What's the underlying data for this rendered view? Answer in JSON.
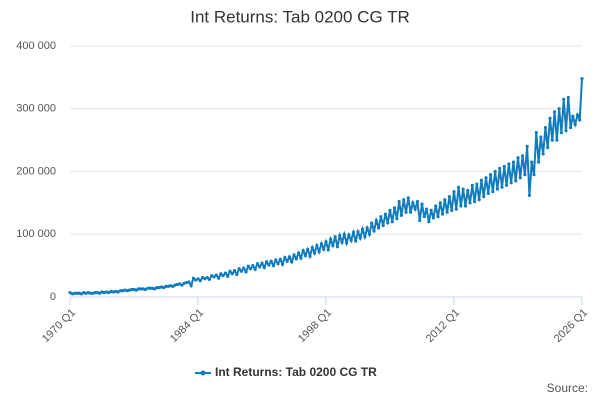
{
  "chart_data": {
    "type": "line",
    "title": "Int Returns: Tab 0200 CG TR",
    "source": "Source:",
    "categories": [
      "1970 Q1",
      null,
      null,
      null,
      null,
      null,
      null,
      null,
      null,
      null,
      null,
      null,
      null,
      null,
      null,
      null,
      null,
      null,
      null,
      null,
      null,
      null,
      null,
      null,
      null,
      null,
      null,
      null,
      null,
      null,
      null,
      null,
      null,
      null,
      null,
      null,
      null,
      null,
      null,
      null,
      null,
      null,
      null,
      null,
      null,
      null,
      null,
      null,
      null,
      null,
      null,
      null,
      null,
      null,
      null,
      null,
      "1984 Q1",
      null,
      null,
      null,
      null,
      null,
      null,
      null,
      null,
      null,
      null,
      null,
      null,
      null,
      null,
      null,
      null,
      null,
      null,
      null,
      null,
      null,
      null,
      null,
      null,
      null,
      null,
      null,
      null,
      null,
      null,
      null,
      null,
      null,
      null,
      null,
      null,
      null,
      null,
      null,
      null,
      null,
      null,
      null,
      null,
      null,
      null,
      null,
      null,
      null,
      null,
      null,
      null,
      null,
      null,
      null,
      "1998 Q1",
      null,
      null,
      null,
      null,
      null,
      null,
      null,
      null,
      null,
      null,
      null,
      null,
      null,
      null,
      null,
      null,
      null,
      null,
      null,
      null,
      null,
      null,
      null,
      null,
      null,
      null,
      null,
      null,
      null,
      null,
      null,
      null,
      null,
      null,
      null,
      null,
      null,
      null,
      null,
      null,
      null,
      null,
      null,
      null,
      null,
      null,
      null,
      null,
      null,
      null,
      null,
      null,
      null,
      null,
      null,
      "2012 Q1",
      null,
      null,
      null,
      null,
      null,
      null,
      null,
      null,
      null,
      null,
      null,
      null,
      null,
      null,
      null,
      null,
      null,
      null,
      null,
      null,
      null,
      null,
      null,
      null,
      null,
      null,
      null,
      null,
      null,
      null,
      null,
      null,
      null,
      null,
      null,
      null,
      null,
      null,
      null,
      null,
      null,
      null,
      null,
      null,
      null,
      null,
      null,
      null,
      null,
      null,
      null,
      null,
      null,
      null,
      null,
      "2026 Q1"
    ],
    "series": [
      {
        "name": "Int Returns: Tab 0200 CG TR",
        "color": "#0f7cbf",
        "values": [
          7000,
          5000,
          6000,
          6000,
          6000,
          5000,
          7000,
          6000,
          7000,
          6000,
          6000,
          7000,
          7000,
          6000,
          8000,
          7000,
          8000,
          7000,
          9000,
          8000,
          9000,
          8000,
          10000,
          10000,
          11000,
          10000,
          11000,
          12000,
          12000,
          11000,
          13000,
          13000,
          13000,
          12000,
          14000,
          14000,
          14000,
          13000,
          15000,
          15000,
          16000,
          15000,
          17000,
          17000,
          18000,
          17000,
          19000,
          20000,
          21000,
          19000,
          22000,
          23000,
          24000,
          18000,
          30000,
          27000,
          29000,
          26000,
          31000,
          29000,
          31000,
          28000,
          34000,
          32000,
          35000,
          30000,
          37000,
          34000,
          38000,
          33000,
          41000,
          37000,
          42000,
          36000,
          45000,
          41000,
          46000,
          40000,
          49000,
          45000,
          50000,
          44000,
          53000,
          48000,
          54000,
          47000,
          56000,
          51000,
          57000,
          50000,
          59000,
          53000,
          60000,
          52000,
          63000,
          57000,
          64000,
          56000,
          67000,
          61000,
          70000,
          62000,
          74000,
          66000,
          76000,
          65000,
          79000,
          70000,
          82000,
          72000,
          85000,
          76000,
          88000,
          75000,
          92000,
          82000,
          96000,
          80000,
          98000,
          87000,
          100000,
          86000,
          99000,
          90000,
          103000,
          89000,
          104000,
          94000,
          108000,
          96000,
          110000,
          100000,
          118000,
          105000,
          122000,
          110000,
          128000,
          114000,
          132000,
          118000,
          138000,
          120000,
          142000,
          125000,
          152000,
          130000,
          155000,
          135000,
          158000,
          135000,
          150000,
          140000,
          152000,
          122000,
          148000,
          128000,
          140000,
          120000,
          138000,
          126000,
          145000,
          128000,
          150000,
          132000,
          155000,
          135000,
          160000,
          138000,
          168000,
          140000,
          175000,
          145000,
          172000,
          145000,
          170000,
          150000,
          178000,
          152000,
          180000,
          155000,
          186000,
          160000,
          190000,
          165000,
          195000,
          168000,
          200000,
          172000,
          205000,
          175000,
          208000,
          178000,
          212000,
          182000,
          215000,
          185000,
          222000,
          190000,
          225000,
          195000,
          240000,
          162000,
          215000,
          195000,
          262000,
          215000,
          255000,
          228000,
          270000,
          238000,
          285000,
          250000,
          295000,
          250000,
          300000,
          262000,
          315000,
          265000,
          318000,
          270000,
          288000,
          275000,
          290000,
          282000,
          348000
        ]
      }
    ],
    "ylim": [
      0,
      400000
    ],
    "yticks": [
      0,
      {
        "value": 100000,
        "label": "100 000"
      },
      {
        "value": 200000,
        "label": "200 000"
      },
      {
        "value": 300000,
        "label": "300 000"
      },
      {
        "value": 400000,
        "label": "400 000"
      }
    ],
    "grid": true,
    "legend": "bottom"
  }
}
